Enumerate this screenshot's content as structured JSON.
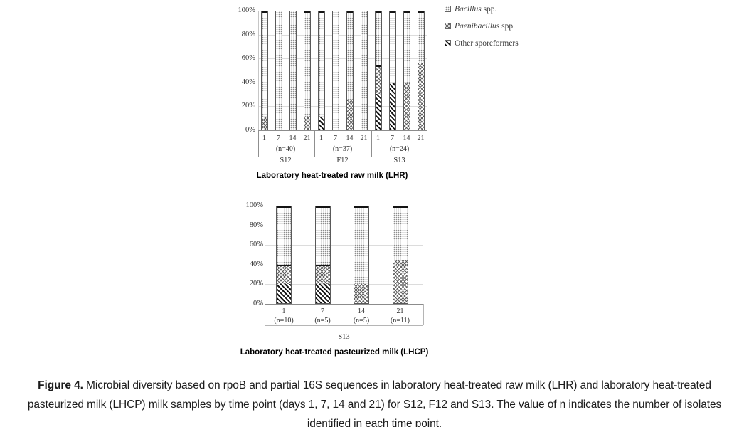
{
  "figure": {
    "caption_label": "Figure 4.",
    "caption_text": " Microbial diversity based on rpoB and partial 16S sequences in laboratory heat-treated raw milk (LHR) and laboratory heat-treated pasteurized milk (LHCP) milk samples by time point (days 1, 7, 14 and 21) for S12, F12 and S13. The value of n indicates the number of isolates identified in each time point."
  },
  "legend": {
    "position": "top-right",
    "items": [
      {
        "key": "bacillus",
        "italic": "Bacillus",
        "rest": " spp."
      },
      {
        "key": "paenibacillus",
        "italic": "Paenibacillus",
        "rest": " spp."
      },
      {
        "key": "other",
        "italic": "",
        "rest": "Other sporeformers"
      }
    ]
  },
  "colors": {
    "pattern_dark_ink": "#161616",
    "pattern_light_ink": "#8d8d8d",
    "gridline": "#dcdcdc",
    "axis": "#8c8c8c",
    "text": "#2f2f2f"
  },
  "chart_data": [
    {
      "type": "bar",
      "stacked": true,
      "percent_axis": true,
      "title": "Laboratory heat-treated raw milk (LHR)",
      "ylim": [
        0,
        100
      ],
      "ytick_labels": [
        "0%",
        "20%",
        "40%",
        "60%",
        "80%",
        "100%"
      ],
      "grid": true,
      "legend_position": "right",
      "categories": [
        "1",
        "7",
        "14",
        "21",
        "1",
        "7",
        "14",
        "21",
        "1",
        "7",
        "14",
        "21"
      ],
      "group_labels": [
        "S12",
        "F12",
        "S13"
      ],
      "group_n_labels": [
        "(n=40)",
        "(n=37)",
        "(n=24)"
      ],
      "group_size": 4,
      "stack_order_bottom_to_top": [
        "other",
        "paenibacillus",
        "bacillus"
      ],
      "series": [
        {
          "key": "bacillus",
          "name": "Bacillus spp.",
          "values": [
            90,
            100,
            100,
            90,
            90,
            100,
            75,
            100,
            46,
            60,
            60,
            44
          ]
        },
        {
          "key": "paenibacillus",
          "name": "Paenibacillus spp.",
          "values": [
            10,
            0,
            0,
            10,
            0,
            0,
            25,
            0,
            24,
            0,
            40,
            56
          ]
        },
        {
          "key": "other",
          "name": "Other sporeformers",
          "values": [
            0,
            0,
            0,
            0,
            10,
            0,
            0,
            0,
            30,
            40,
            0,
            0
          ]
        }
      ]
    },
    {
      "type": "bar",
      "stacked": true,
      "percent_axis": true,
      "title": "Laboratory heat-treated pasteurized milk (LHCP)",
      "ylim": [
        0,
        100
      ],
      "ytick_labels": [
        "0%",
        "20%",
        "40%",
        "60%",
        "80%",
        "100%"
      ],
      "grid": true,
      "categories": [
        "1",
        "7",
        "14",
        "21"
      ],
      "category_n_labels": [
        "(n=10)",
        "(n=5)",
        "(n=5)",
        "(n=11)"
      ],
      "group_labels": [
        "S13"
      ],
      "stack_order_bottom_to_top": [
        "other",
        "paenibacillus",
        "bacillus"
      ],
      "series": [
        {
          "key": "bacillus",
          "name": "Bacillus spp.",
          "values": [
            60,
            60,
            80,
            55
          ]
        },
        {
          "key": "paenibacillus",
          "name": "Paenibacillus spp.",
          "values": [
            20,
            20,
            20,
            45
          ]
        },
        {
          "key": "other",
          "name": "Other sporeformers",
          "values": [
            20,
            20,
            0,
            0
          ]
        }
      ]
    }
  ]
}
